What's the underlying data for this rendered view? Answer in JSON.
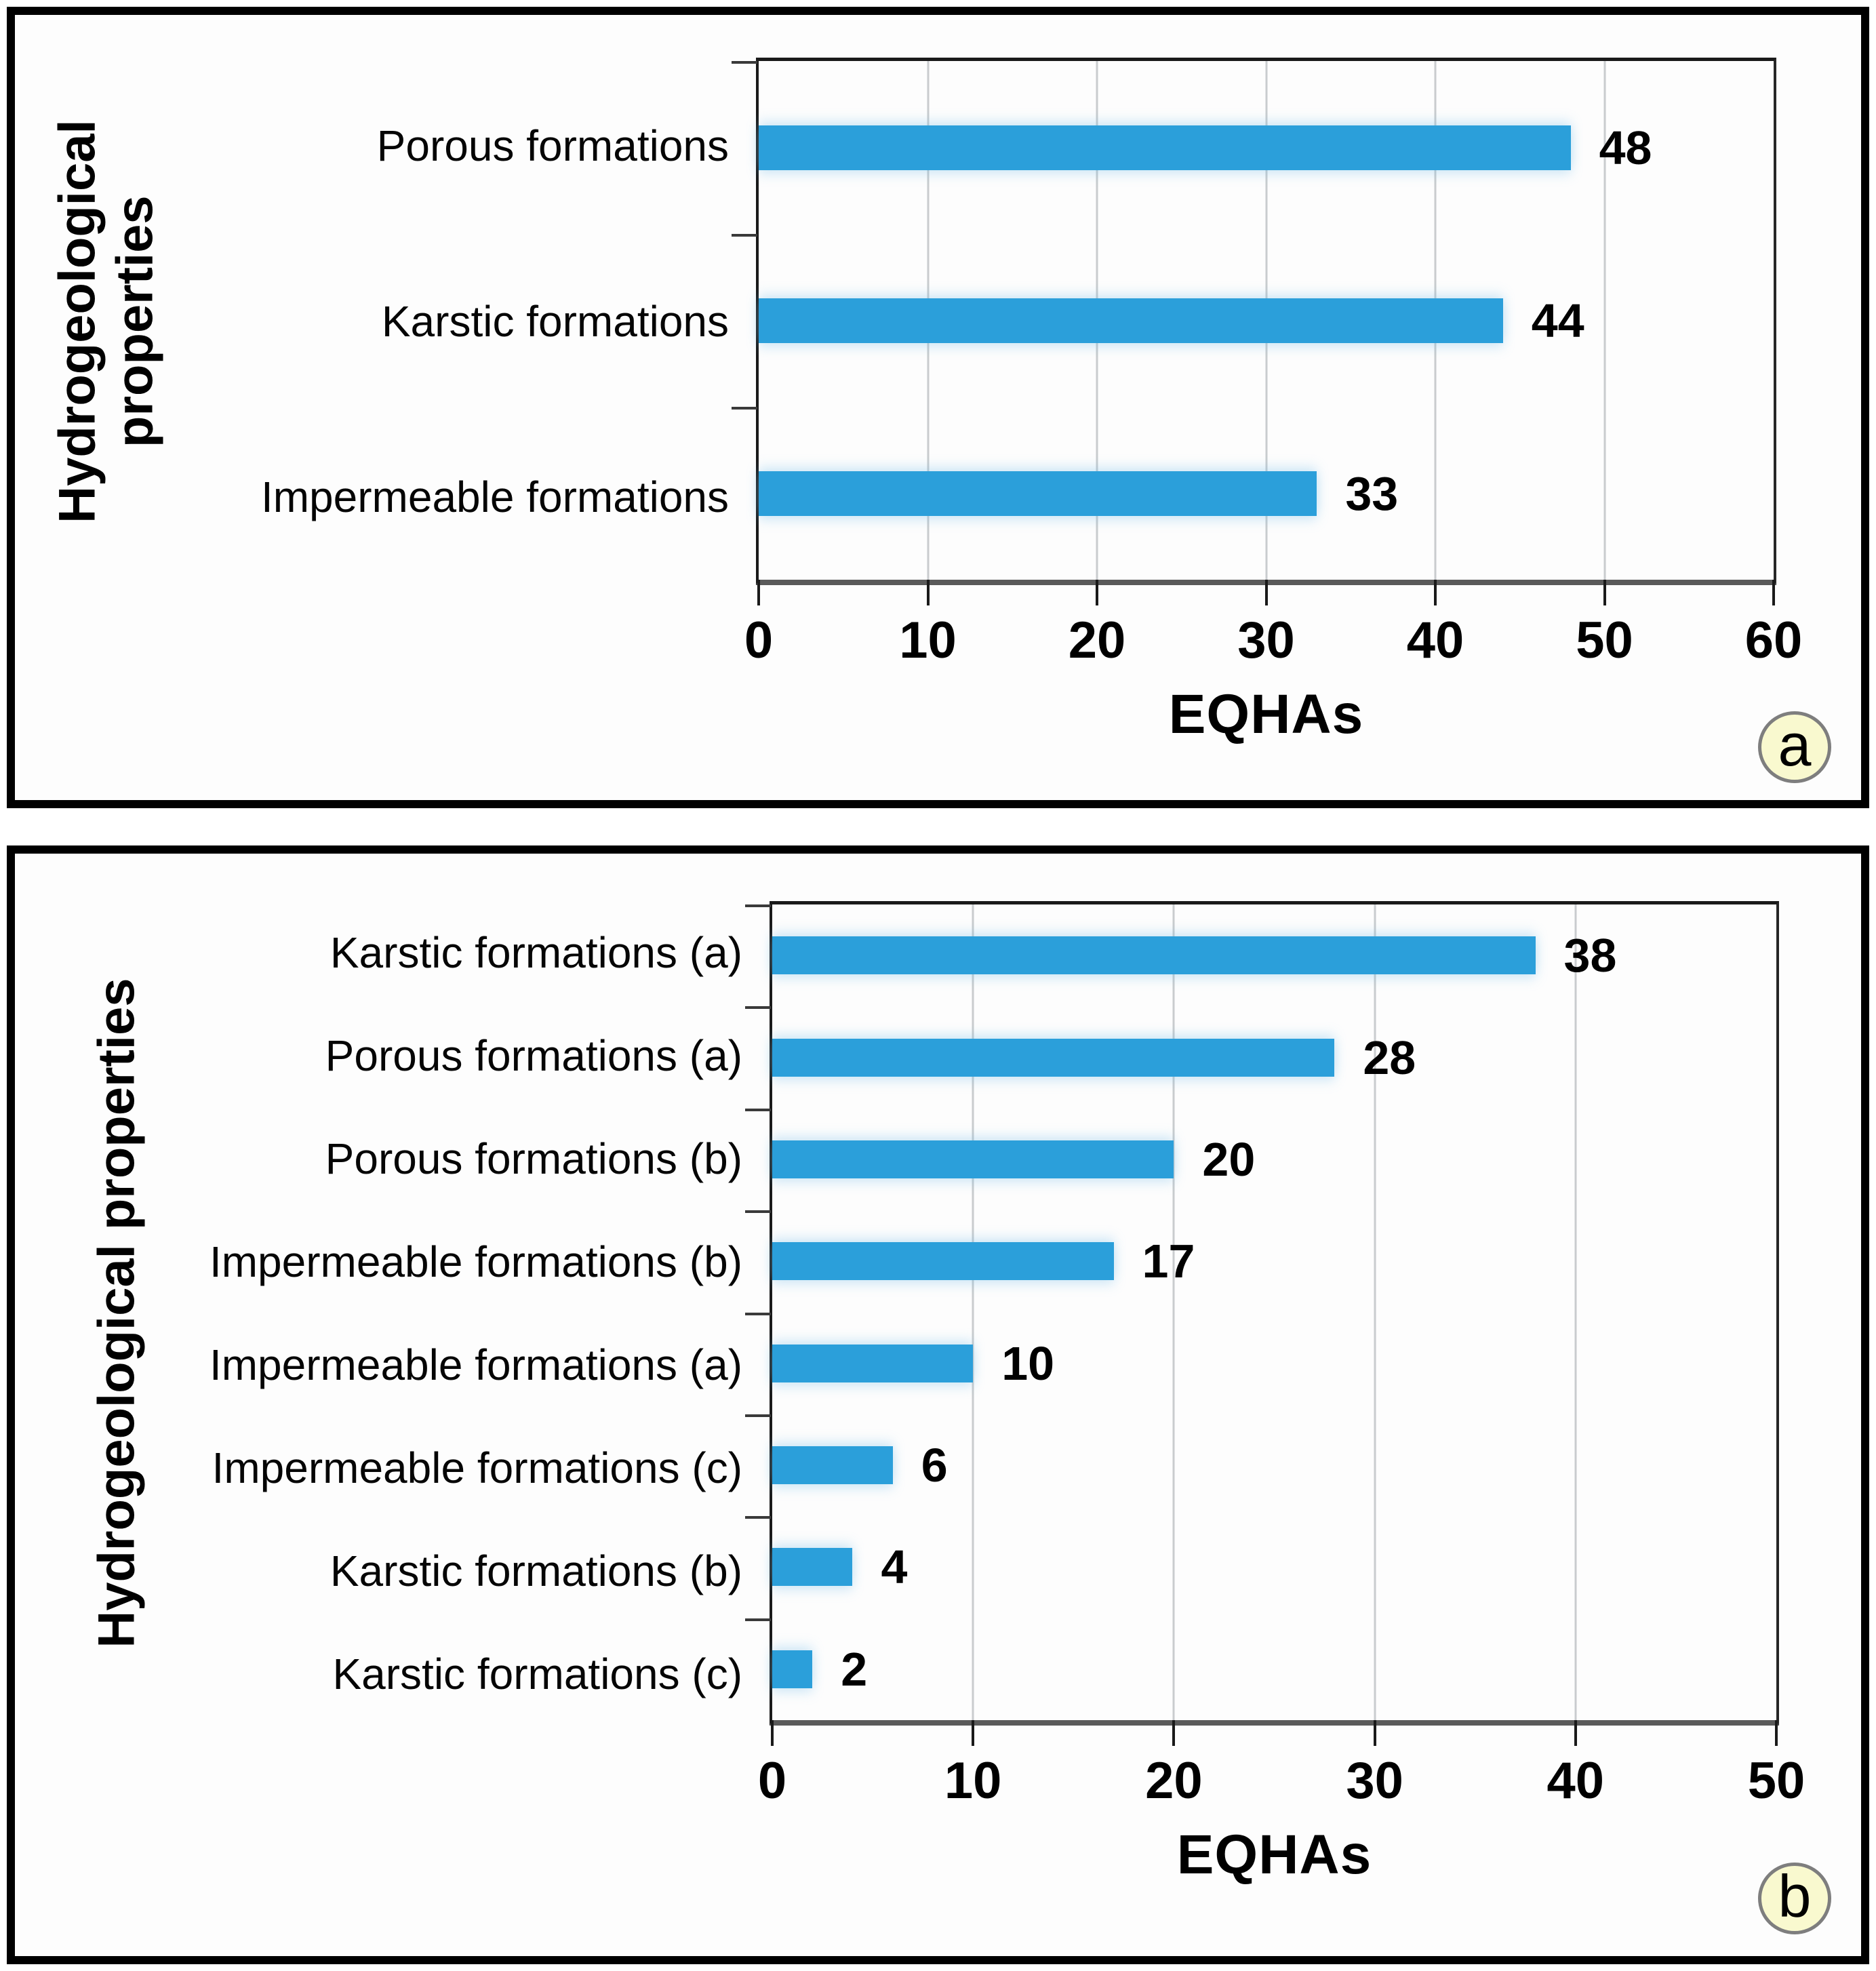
{
  "style": {
    "bar_color": "#2B9FDA",
    "gridline_color": "#C9CCCE",
    "axis_line_color": "#5A5A5A",
    "plot_border_color": "#1A1A1A",
    "tick_color": "#1A1A1A",
    "text_color": "#000000",
    "circle_fill": "#F9F9CF",
    "circle_border": "#7E7E7E"
  },
  "chart_data": [
    {
      "type": "bar",
      "orientation": "horizontal",
      "panel_label": "a",
      "categories": [
        "Porous formations",
        "Karstic formations",
        "Impermeable formations"
      ],
      "values": [
        48,
        44,
        33
      ],
      "show_value_labels": true,
      "xlabel": "EQHAs",
      "ylabel": "Hydrogeological properties",
      "ylabel_lines": [
        "Hydrogeological",
        "properties"
      ],
      "xlim": [
        0,
        60
      ],
      "x_ticks": [
        0,
        10,
        20,
        30,
        40,
        50,
        60
      ],
      "grid": "vertical",
      "legend": "none"
    },
    {
      "type": "bar",
      "orientation": "horizontal",
      "panel_label": "b",
      "categories": [
        "Karstic formations (a)",
        "Porous formations (a)",
        "Porous formations (b)",
        "Impermeable formations (b)",
        "Impermeable formations (a)",
        "Impermeable formations (c)",
        "Karstic formations (b)",
        "Karstic formations (c)"
      ],
      "values": [
        38,
        28,
        20,
        17,
        10,
        6,
        4,
        2
      ],
      "show_value_labels": true,
      "xlabel": "EQHAs",
      "ylabel": "Hydrogeological properties",
      "ylabel_lines": [
        "Hydrogeological properties"
      ],
      "xlim": [
        0,
        50
      ],
      "x_ticks": [
        0,
        10,
        20,
        30,
        40,
        50
      ],
      "grid": "vertical",
      "legend": "none"
    }
  ]
}
